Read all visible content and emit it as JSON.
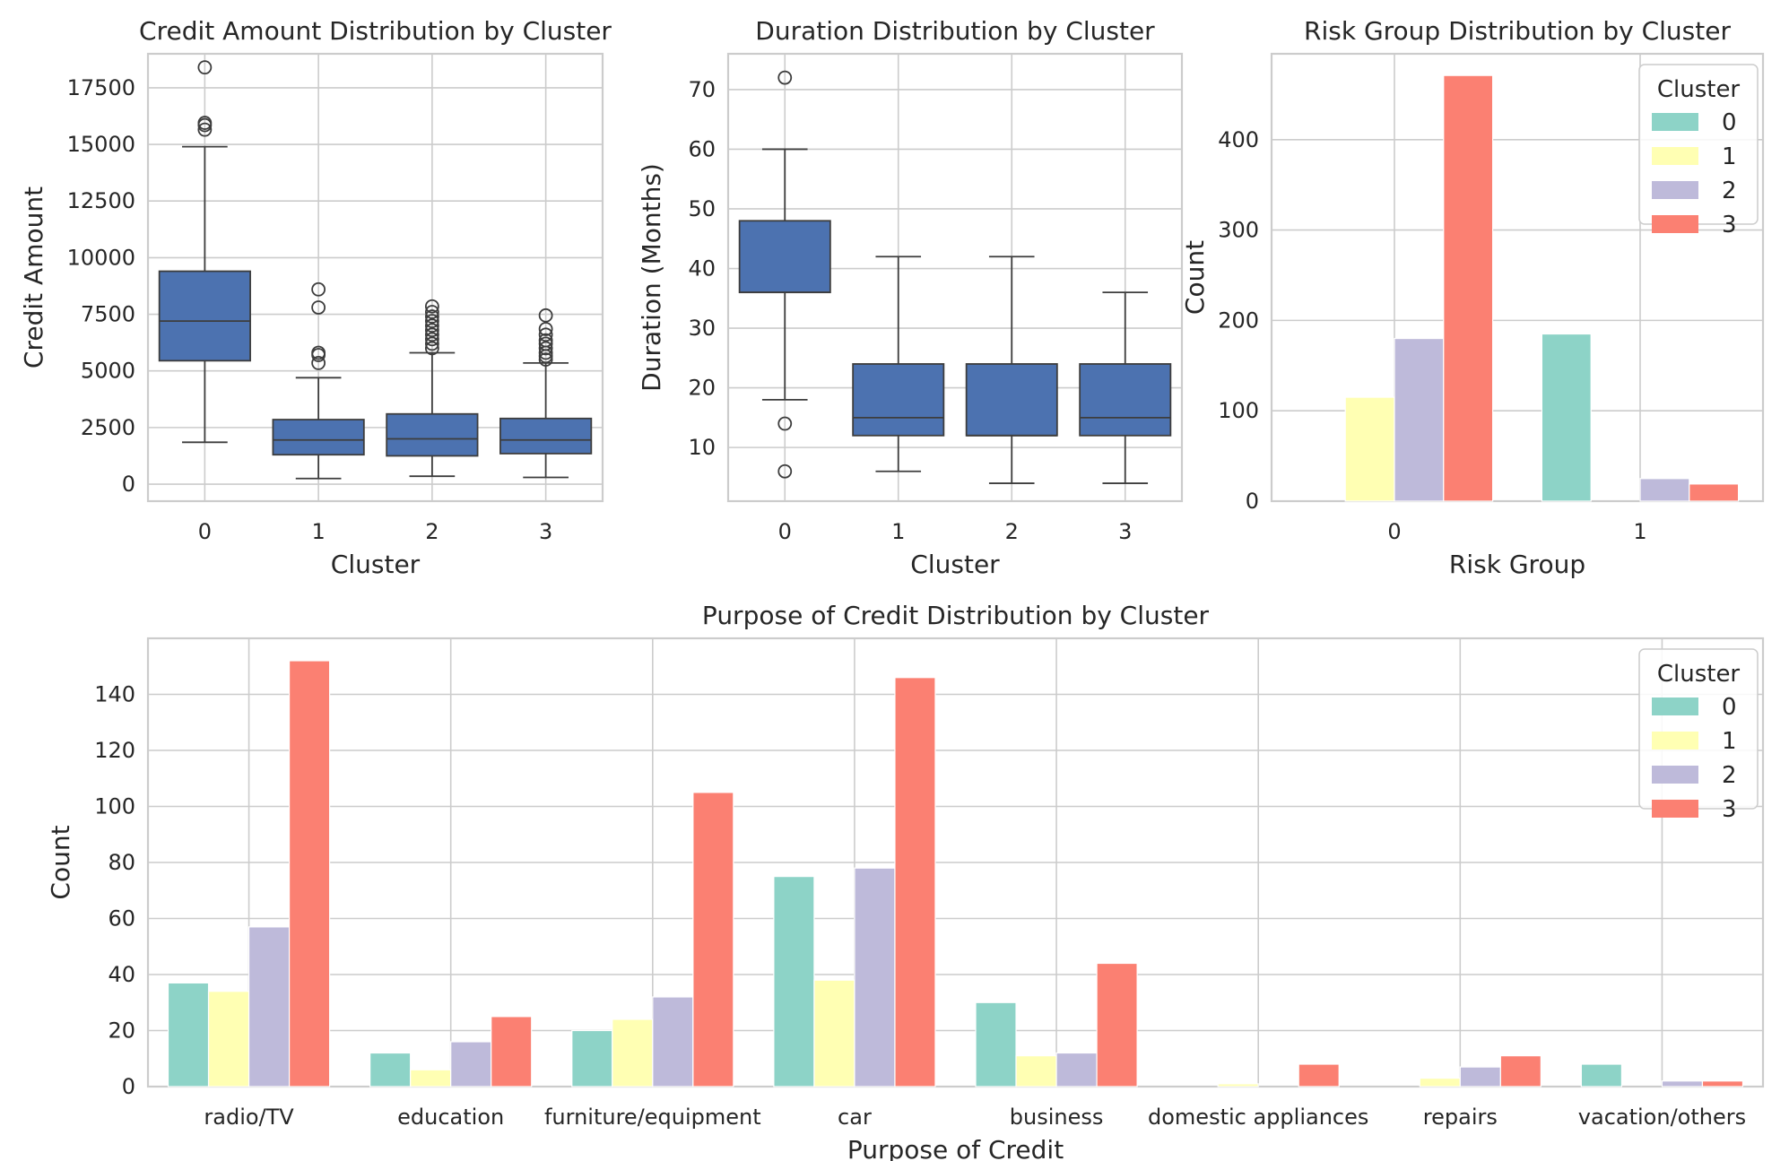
{
  "chart_data": [
    {
      "type": "box",
      "title": "Credit Amount Distribution by Cluster",
      "xlabel": "Cluster",
      "ylabel": "Credit Amount",
      "categories": [
        "0",
        "1",
        "2",
        "3"
      ],
      "ylim": [
        -750,
        19000
      ],
      "yticks": [
        0,
        2500,
        5000,
        7500,
        10000,
        12500,
        15000,
        17500
      ],
      "grid": true,
      "color": "#4c72b0",
      "boxes": [
        {
          "q1": 5450,
          "median": 7200,
          "q3": 9400,
          "whislo": 1850,
          "whishi": 14900,
          "fliers": [
            15650,
            15850,
            15950,
            18400
          ]
        },
        {
          "q1": 1300,
          "median": 1950,
          "q3": 2850,
          "whislo": 250,
          "whishi": 4700,
          "fliers": [
            5350,
            5700,
            5800,
            7800,
            8600
          ]
        },
        {
          "q1": 1250,
          "median": 2000,
          "q3": 3100,
          "whislo": 350,
          "whishi": 5800,
          "fliers": [
            6000,
            6200,
            6400,
            6600,
            6800,
            7000,
            7200,
            7400,
            7600,
            7850
          ]
        },
        {
          "q1": 1350,
          "median": 1950,
          "q3": 2900,
          "whislo": 300,
          "whishi": 5350,
          "fliers": [
            5500,
            5650,
            5800,
            6000,
            6200,
            6350,
            6600,
            6850,
            7450
          ]
        }
      ]
    },
    {
      "type": "box",
      "title": "Duration Distribution by Cluster",
      "xlabel": "Cluster",
      "ylabel": "Duration (Months)",
      "categories": [
        "0",
        "1",
        "2",
        "3"
      ],
      "ylim": [
        1,
        76
      ],
      "yticks": [
        10,
        20,
        30,
        40,
        50,
        60,
        70
      ],
      "grid": true,
      "color": "#4c72b0",
      "boxes": [
        {
          "q1": 36,
          "median": 36,
          "q3": 48,
          "whislo": 18,
          "whishi": 60,
          "fliers": [
            14,
            6,
            72
          ]
        },
        {
          "q1": 12,
          "median": 15,
          "q3": 24,
          "whislo": 6,
          "whishi": 42,
          "fliers": []
        },
        {
          "q1": 12,
          "median": 12,
          "q3": 24,
          "whislo": 4,
          "whishi": 42,
          "fliers": []
        },
        {
          "q1": 12,
          "median": 15,
          "q3": 24,
          "whislo": 4,
          "whishi": 36,
          "fliers": []
        }
      ]
    },
    {
      "type": "bar",
      "title": "Risk Group Distribution by Cluster",
      "xlabel": "Risk Group",
      "ylabel": "Count",
      "categories": [
        "0",
        "1"
      ],
      "ylim": [
        0,
        495
      ],
      "yticks": [
        0,
        100,
        200,
        300,
        400
      ],
      "grid": true,
      "legend": {
        "title": "Cluster",
        "position": "upper right"
      },
      "series": [
        {
          "name": "0",
          "color": "#8dd3c7",
          "values": [
            0,
            185
          ]
        },
        {
          "name": "1",
          "color": "#ffffb3",
          "values": [
            115,
            0
          ]
        },
        {
          "name": "2",
          "color": "#bebada",
          "values": [
            180,
            25
          ]
        },
        {
          "name": "3",
          "color": "#fb8072",
          "values": [
            471,
            19
          ]
        }
      ]
    },
    {
      "type": "bar",
      "title": "Purpose of Credit Distribution by Cluster",
      "xlabel": "Purpose of Credit",
      "ylabel": "Count",
      "categories": [
        "radio/TV",
        "education",
        "furniture/equipment",
        "car",
        "business",
        "domestic appliances",
        "repairs",
        "vacation/others"
      ],
      "ylim": [
        0,
        160
      ],
      "yticks": [
        0,
        20,
        40,
        60,
        80,
        100,
        120,
        140
      ],
      "grid": true,
      "legend": {
        "title": "Cluster",
        "position": "upper right"
      },
      "series": [
        {
          "name": "0",
          "color": "#8dd3c7",
          "values": [
            37,
            12,
            20,
            75,
            30,
            0,
            0,
            8
          ]
        },
        {
          "name": "1",
          "color": "#ffffb3",
          "values": [
            34,
            6,
            24,
            38,
            11,
            1,
            3,
            0
          ]
        },
        {
          "name": "2",
          "color": "#bebada",
          "values": [
            57,
            16,
            32,
            78,
            12,
            0,
            7,
            2
          ]
        },
        {
          "name": "3",
          "color": "#fb8072",
          "values": [
            152,
            25,
            105,
            146,
            44,
            8,
            11,
            2
          ]
        }
      ]
    }
  ]
}
